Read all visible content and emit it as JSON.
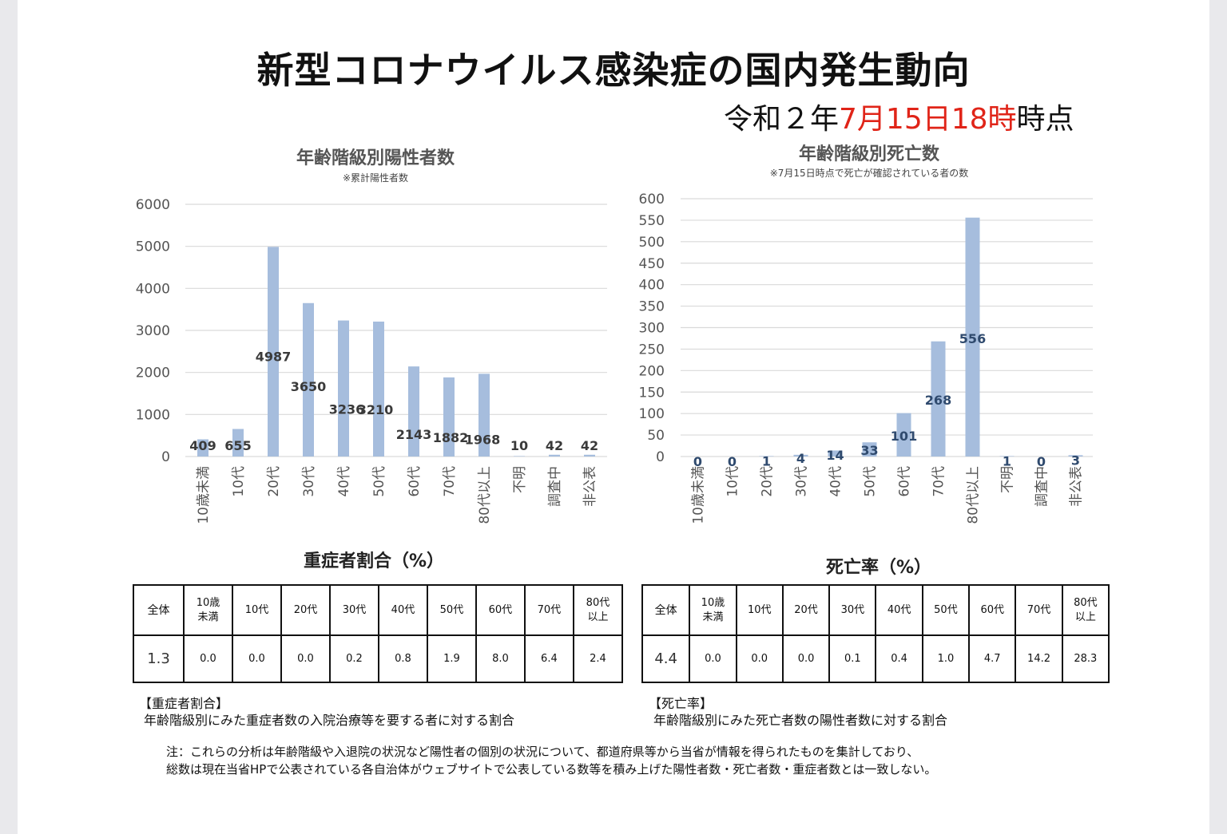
{
  "title": "新型コロナウイルス感染症の国内発生動向",
  "date_line": {
    "prefix": "令和２年",
    "date": "7月15日18時",
    "suffix": "時点"
  },
  "colors": {
    "bar": "#a6bddd",
    "grid": "#d9d9d9",
    "accent": "#e02418"
  },
  "chart_data": [
    {
      "type": "bar",
      "title": "年齢階級別陽性者数",
      "subtitle": "※累計陽性者数",
      "categories": [
        "10歳未満",
        "10代",
        "20代",
        "30代",
        "40代",
        "50代",
        "60代",
        "70代",
        "80代以上",
        "不明",
        "調査中",
        "非公表"
      ],
      "values": [
        409,
        655,
        4987,
        3650,
        3236,
        3210,
        2143,
        1882,
        1968,
        10,
        42,
        42
      ],
      "labels": [
        "409",
        "655",
        "4987",
        "3650",
        "3236",
        "3210",
        "2143",
        "1882",
        "1968",
        "10",
        "42",
        "42"
      ],
      "ylim": [
        0,
        6000
      ],
      "yticks": [
        "0",
        "1000",
        "2000",
        "3000",
        "4000",
        "5000",
        "6000"
      ],
      "grid": true,
      "legend": "none"
    },
    {
      "type": "bar",
      "title": "年齢階級別死亡数",
      "subtitle": "※7月15日時点で死亡が確認されている者の数",
      "categories": [
        "10歳未満",
        "10代",
        "20代",
        "30代",
        "40代",
        "50代",
        "60代",
        "70代",
        "80代以上",
        "不明",
        "調査中",
        "非公表"
      ],
      "values": [
        0,
        0,
        1,
        4,
        14,
        33,
        101,
        268,
        556,
        1,
        0,
        3
      ],
      "labels": [
        "0",
        "0",
        "1",
        "4",
        "14",
        "33",
        "101",
        "268",
        "556",
        "1",
        "0",
        "3"
      ],
      "ylim": [
        0,
        600
      ],
      "yticks": [
        "0",
        "50",
        "100",
        "150",
        "200",
        "250",
        "300",
        "350",
        "400",
        "450",
        "500",
        "550",
        "600"
      ],
      "grid": true,
      "legend": "none"
    }
  ],
  "severe_table": {
    "title": "重症者割合（%）",
    "headers": [
      "全体",
      "10歳\n未満",
      "10代",
      "20代",
      "30代",
      "40代",
      "50代",
      "60代",
      "70代",
      "80代\n以上"
    ],
    "values": [
      "1.3",
      "0.0",
      "0.0",
      "0.0",
      "0.2",
      "0.8",
      "1.9",
      "8.0",
      "6.4",
      "2.4"
    ],
    "note_head": "【重症者割合】",
    "note_body": "年齢階級別にみた重症者数の入院治療等を要する者に対する割合"
  },
  "death_table": {
    "title": "死亡率（%）",
    "headers": [
      "全体",
      "10歳\n未満",
      "10代",
      "20代",
      "30代",
      "40代",
      "50代",
      "60代",
      "70代",
      "80代\n以上"
    ],
    "values": [
      "4.4",
      "0.0",
      "0.0",
      "0.0",
      "0.1",
      "0.4",
      "1.0",
      "4.7",
      "14.2",
      "28.3"
    ],
    "note_head": "【死亡率】",
    "note_body": "年齢階級別にみた死亡者数の陽性者数に対する割合"
  },
  "footnote": [
    "注：これらの分析は年齢階級や入退院の状況など陽性者の個別の状況について、都道府県等から当省が情報を得られたものを集計しており、",
    "総数は現在当省HPで公表されている各自治体がウェブサイトで公表している数等を積み上げた陽性者数・死亡者数・重症者数とは一致しない。"
  ]
}
